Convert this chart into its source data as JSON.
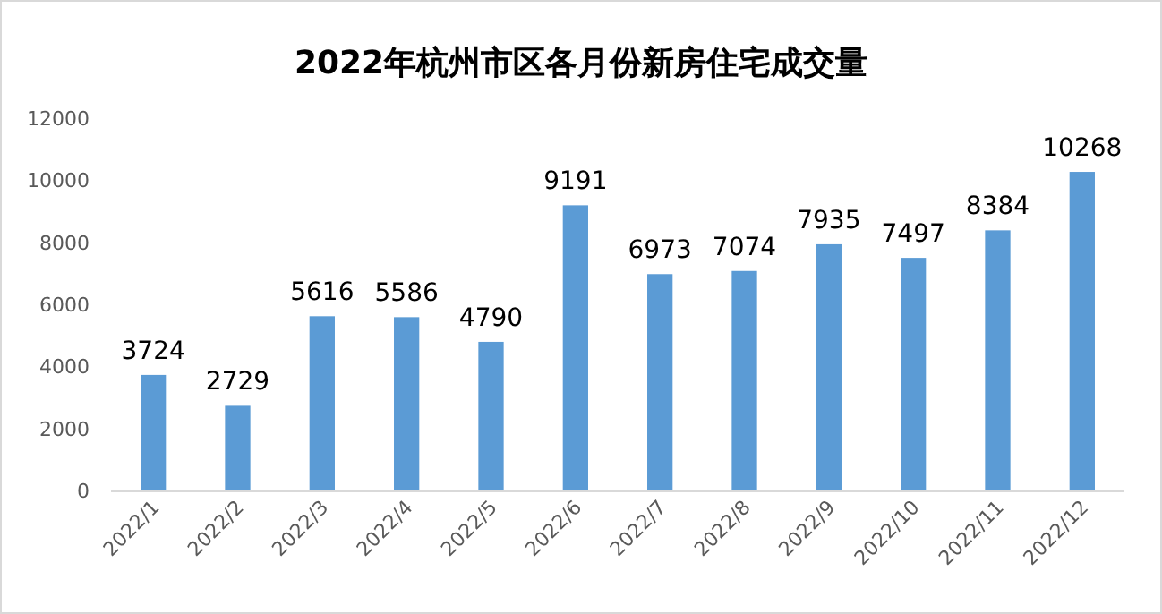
{
  "chart_data": {
    "type": "bar",
    "title": "2022年杭州市区各月份新房住宅成交量",
    "categories": [
      "2022/1",
      "2022/2",
      "2022/3",
      "2022/4",
      "2022/5",
      "2022/6",
      "2022/7",
      "2022/8",
      "2022/9",
      "2022/10",
      "2022/11",
      "2022/12"
    ],
    "values": [
      3724,
      2729,
      5616,
      5586,
      4790,
      9191,
      6973,
      7074,
      7935,
      7497,
      8384,
      10268
    ],
    "color": "#5b9bd5",
    "ylim": [
      0,
      12000
    ],
    "yticks": [
      0,
      2000,
      4000,
      6000,
      8000,
      10000,
      12000
    ],
    "data_labels": true
  }
}
